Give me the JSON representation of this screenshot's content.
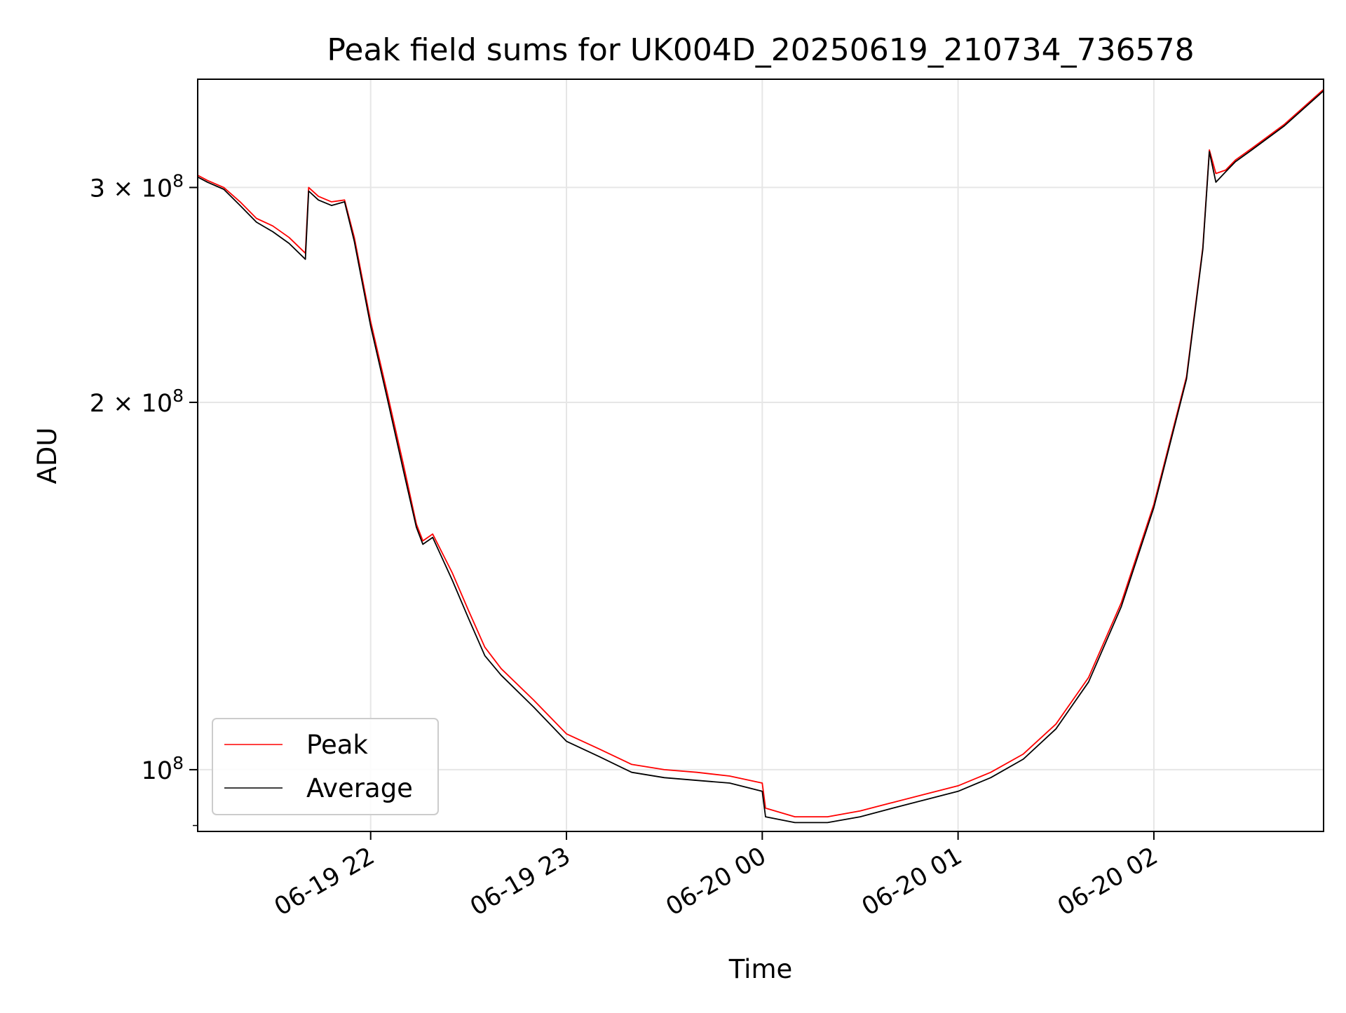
{
  "chart_data": {
    "type": "line",
    "title": "Peak field sums for UK004D_20250619_210734_736578",
    "xlabel": "Time",
    "ylabel": "ADU",
    "y_scale": "log",
    "xlim": [
      "2025-06-19 21:07",
      "2025-06-20 02:52"
    ],
    "ylim": [
      89000000,
      368000000
    ],
    "grid": true,
    "legend_position": "lower-left",
    "x_ticks": [
      {
        "label": "06-19 22",
        "value": "2025-06-19 22:00"
      },
      {
        "label": "06-19 23",
        "value": "2025-06-19 23:00"
      },
      {
        "label": "06-20 00",
        "value": "2025-06-20 00:00"
      },
      {
        "label": "06-20 01",
        "value": "2025-06-20 01:00"
      },
      {
        "label": "06-20 02",
        "value": "2025-06-20 02:00"
      }
    ],
    "y_ticks": [
      {
        "label": "3 × 10",
        "exponent": "8",
        "value": 300000000
      },
      {
        "label": "2 × 10",
        "exponent": "8",
        "value": 200000000
      },
      {
        "label": "10",
        "exponent": "8",
        "value": 100000000
      }
    ],
    "series": [
      {
        "name": "Peak",
        "color": "#ff0000",
        "x": [
          "2025-06-19 21:07",
          "2025-06-19 21:10",
          "2025-06-19 21:15",
          "2025-06-19 21:20",
          "2025-06-19 21:25",
          "2025-06-19 21:30",
          "2025-06-19 21:35",
          "2025-06-19 21:40",
          "2025-06-19 21:41",
          "2025-06-19 21:44",
          "2025-06-19 21:48",
          "2025-06-19 21:52",
          "2025-06-19 21:55",
          "2025-06-19 22:00",
          "2025-06-19 22:05",
          "2025-06-19 22:10",
          "2025-06-19 22:14",
          "2025-06-19 22:16",
          "2025-06-19 22:19",
          "2025-06-19 22:25",
          "2025-06-19 22:30",
          "2025-06-19 22:35",
          "2025-06-19 22:40",
          "2025-06-19 22:50",
          "2025-06-19 23:00",
          "2025-06-19 23:10",
          "2025-06-19 23:20",
          "2025-06-19 23:30",
          "2025-06-19 23:40",
          "2025-06-19 23:50",
          "2025-06-20 00:00",
          "2025-06-20 00:01",
          "2025-06-20 00:10",
          "2025-06-20 00:20",
          "2025-06-20 00:30",
          "2025-06-20 00:40",
          "2025-06-20 00:50",
          "2025-06-20 01:00",
          "2025-06-20 01:10",
          "2025-06-20 01:20",
          "2025-06-20 01:30",
          "2025-06-20 01:40",
          "2025-06-20 01:50",
          "2025-06-20 02:00",
          "2025-06-20 02:10",
          "2025-06-20 02:15",
          "2025-06-20 02:17",
          "2025-06-20 02:19",
          "2025-06-20 02:22",
          "2025-06-20 02:25",
          "2025-06-20 02:30",
          "2025-06-20 02:40",
          "2025-06-20 02:52"
        ],
        "y": [
          307000000,
          304000000,
          300000000,
          292000000,
          283000000,
          279000000,
          273000000,
          265000000,
          300000000,
          295000000,
          292000000,
          293000000,
          273000000,
          233000000,
          204000000,
          178000000,
          159000000,
          154000000,
          156000000,
          145000000,
          135000000,
          126000000,
          121000000,
          114000000,
          107000000,
          104000000,
          101000000,
          100000000,
          99500000,
          98800000,
          97500000,
          93000000,
          91500000,
          91500000,
          92500000,
          94000000,
          95500000,
          97000000,
          99500000,
          103000000,
          109000000,
          119000000,
          137000000,
          165000000,
          210000000,
          268000000,
          322000000,
          308000000,
          310000000,
          316000000,
          323000000,
          338000000,
          361000000
        ]
      },
      {
        "name": "Average",
        "color": "#000000",
        "x": [
          "2025-06-19 21:07",
          "2025-06-19 21:10",
          "2025-06-19 21:15",
          "2025-06-19 21:20",
          "2025-06-19 21:25",
          "2025-06-19 21:30",
          "2025-06-19 21:35",
          "2025-06-19 21:40",
          "2025-06-19 21:41",
          "2025-06-19 21:44",
          "2025-06-19 21:48",
          "2025-06-19 21:52",
          "2025-06-19 21:55",
          "2025-06-19 22:00",
          "2025-06-19 22:05",
          "2025-06-19 22:10",
          "2025-06-19 22:14",
          "2025-06-19 22:16",
          "2025-06-19 22:19",
          "2025-06-19 22:25",
          "2025-06-19 22:30",
          "2025-06-19 22:35",
          "2025-06-19 22:40",
          "2025-06-19 22:50",
          "2025-06-19 23:00",
          "2025-06-19 23:10",
          "2025-06-19 23:20",
          "2025-06-19 23:30",
          "2025-06-19 23:40",
          "2025-06-19 23:50",
          "2025-06-20 00:00",
          "2025-06-20 00:01",
          "2025-06-20 00:10",
          "2025-06-20 00:20",
          "2025-06-20 00:30",
          "2025-06-20 00:40",
          "2025-06-20 00:50",
          "2025-06-20 01:00",
          "2025-06-20 01:10",
          "2025-06-20 01:20",
          "2025-06-20 01:30",
          "2025-06-20 01:40",
          "2025-06-20 01:50",
          "2025-06-20 02:00",
          "2025-06-20 02:10",
          "2025-06-20 02:15",
          "2025-06-20 02:17",
          "2025-06-20 02:19",
          "2025-06-20 02:22",
          "2025-06-20 02:25",
          "2025-06-20 02:30",
          "2025-06-20 02:40",
          "2025-06-20 02:52"
        ],
        "y": [
          306000000,
          303000000,
          299000000,
          290000000,
          281000000,
          276000000,
          270000000,
          262000000,
          298000000,
          293000000,
          290000000,
          292000000,
          271000000,
          231000000,
          202000000,
          176000000,
          158000000,
          153000000,
          155000000,
          143000000,
          133000000,
          124000000,
          119500000,
          112500000,
          105500000,
          102500000,
          99500000,
          98500000,
          98000000,
          97500000,
          96000000,
          91500000,
          90500000,
          90500000,
          91500000,
          93000000,
          94500000,
          96000000,
          98500000,
          102000000,
          108000000,
          118000000,
          136000000,
          164000000,
          209000000,
          267000000,
          321000000,
          303000000,
          309000000,
          315000000,
          322000000,
          337000000,
          360000000
        ]
      }
    ]
  }
}
